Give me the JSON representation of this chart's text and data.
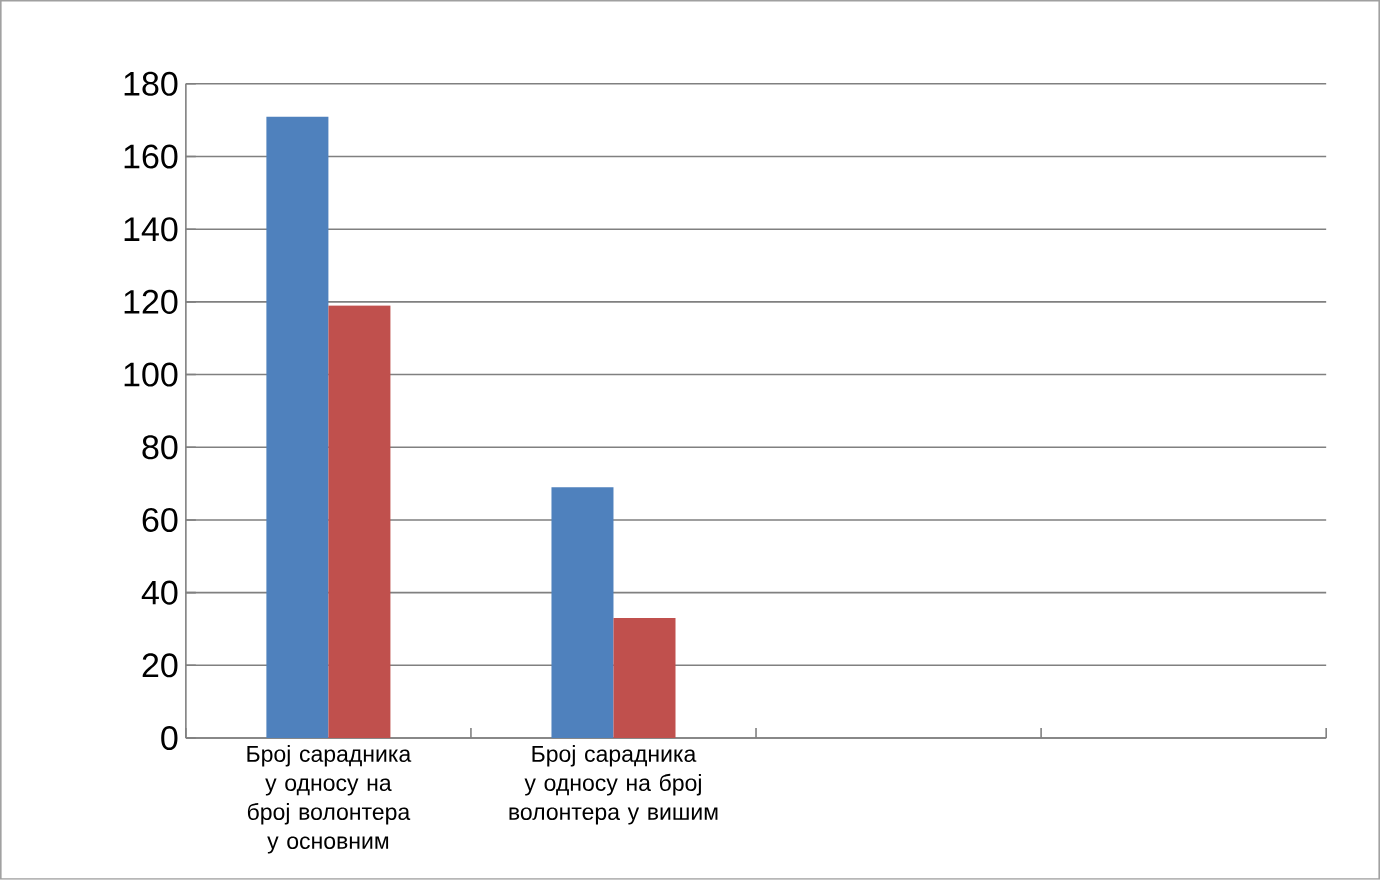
{
  "chart_data": {
    "type": "bar",
    "categories": [
      "Број сарадника у односу на број волонтера у основним",
      "Број сарадника у односу на број волонтера у вишим",
      null,
      null
    ],
    "series": [
      {
        "color": "#4f81bd",
        "values": [
          171,
          69,
          null,
          null
        ]
      },
      {
        "color": "#c0504d",
        "values": [
          119,
          33,
          null,
          null
        ]
      }
    ],
    "ylim": [
      0,
      180
    ],
    "yticks": [
      0,
      20,
      40,
      60,
      80,
      100,
      120,
      140,
      160,
      180
    ],
    "grid": "y"
  }
}
